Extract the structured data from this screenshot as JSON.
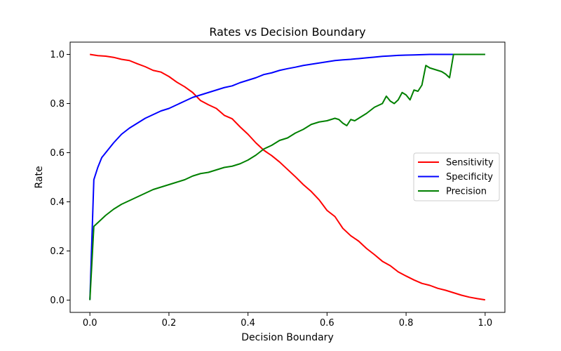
{
  "chart_data": {
    "type": "line",
    "title": "Rates vs Decision Boundary",
    "xlabel": "Decision Boundary",
    "ylabel": "Rate",
    "xlim": [
      -0.05,
      1.05
    ],
    "ylim": [
      -0.05,
      1.05
    ],
    "xticks": [
      0.0,
      0.2,
      0.4,
      0.6,
      0.8,
      1.0
    ],
    "xtick_labels": [
      "0.0",
      "0.2",
      "0.4",
      "0.6",
      "0.8",
      "1.0"
    ],
    "yticks": [
      0.0,
      0.2,
      0.4,
      0.6,
      0.8,
      1.0
    ],
    "ytick_labels": [
      "0.0",
      "0.2",
      "0.4",
      "0.6",
      "0.8",
      "1.0"
    ],
    "grid": false,
    "legend_position": "center-right",
    "series": [
      {
        "name": "Sensitivity",
        "color": "#ff0000",
        "x": [
          0.0,
          0.02,
          0.04,
          0.06,
          0.08,
          0.1,
          0.12,
          0.14,
          0.16,
          0.18,
          0.2,
          0.22,
          0.24,
          0.26,
          0.28,
          0.3,
          0.32,
          0.34,
          0.36,
          0.38,
          0.4,
          0.42,
          0.44,
          0.46,
          0.48,
          0.5,
          0.52,
          0.54,
          0.56,
          0.58,
          0.6,
          0.62,
          0.64,
          0.66,
          0.68,
          0.7,
          0.72,
          0.74,
          0.76,
          0.78,
          0.8,
          0.82,
          0.84,
          0.86,
          0.88,
          0.9,
          0.92,
          0.94,
          0.96,
          0.98,
          1.0
        ],
        "y": [
          1.0,
          0.995,
          0.993,
          0.988,
          0.98,
          0.975,
          0.962,
          0.95,
          0.935,
          0.928,
          0.91,
          0.887,
          0.868,
          0.845,
          0.812,
          0.795,
          0.78,
          0.752,
          0.738,
          0.705,
          0.675,
          0.64,
          0.61,
          0.588,
          0.562,
          0.532,
          0.502,
          0.47,
          0.442,
          0.408,
          0.365,
          0.34,
          0.292,
          0.262,
          0.24,
          0.21,
          0.185,
          0.158,
          0.14,
          0.115,
          0.098,
          0.082,
          0.068,
          0.06,
          0.048,
          0.04,
          0.03,
          0.02,
          0.012,
          0.006,
          0.001
        ]
      },
      {
        "name": "Specificity",
        "color": "#0000ff",
        "x": [
          0.0,
          0.01,
          0.02,
          0.03,
          0.04,
          0.06,
          0.08,
          0.1,
          0.12,
          0.14,
          0.16,
          0.18,
          0.2,
          0.22,
          0.24,
          0.26,
          0.28,
          0.3,
          0.32,
          0.34,
          0.36,
          0.38,
          0.4,
          0.42,
          0.44,
          0.46,
          0.48,
          0.5,
          0.52,
          0.54,
          0.56,
          0.58,
          0.6,
          0.62,
          0.64,
          0.66,
          0.68,
          0.7,
          0.72,
          0.74,
          0.76,
          0.78,
          0.8,
          0.82,
          0.84,
          0.86,
          0.88,
          0.9,
          0.92,
          0.94,
          0.96,
          0.98,
          1.0
        ],
        "y": [
          0.0,
          0.49,
          0.54,
          0.58,
          0.6,
          0.64,
          0.675,
          0.7,
          0.72,
          0.74,
          0.755,
          0.77,
          0.78,
          0.795,
          0.81,
          0.825,
          0.835,
          0.845,
          0.855,
          0.865,
          0.872,
          0.885,
          0.895,
          0.905,
          0.918,
          0.925,
          0.935,
          0.942,
          0.948,
          0.955,
          0.96,
          0.965,
          0.97,
          0.975,
          0.978,
          0.98,
          0.983,
          0.986,
          0.989,
          0.992,
          0.994,
          0.996,
          0.997,
          0.998,
          0.999,
          1.0,
          1.0,
          1.0,
          1.0,
          1.0,
          1.0,
          1.0,
          1.0
        ]
      },
      {
        "name": "Precision",
        "color": "#008000",
        "x": [
          0.0,
          0.01,
          0.02,
          0.03,
          0.04,
          0.06,
          0.08,
          0.1,
          0.12,
          0.14,
          0.16,
          0.18,
          0.2,
          0.22,
          0.24,
          0.26,
          0.28,
          0.3,
          0.32,
          0.34,
          0.36,
          0.38,
          0.4,
          0.42,
          0.44,
          0.46,
          0.48,
          0.5,
          0.52,
          0.54,
          0.56,
          0.58,
          0.6,
          0.61,
          0.62,
          0.63,
          0.64,
          0.65,
          0.66,
          0.67,
          0.68,
          0.7,
          0.72,
          0.74,
          0.75,
          0.76,
          0.77,
          0.78,
          0.79,
          0.8,
          0.81,
          0.82,
          0.83,
          0.84,
          0.85,
          0.86,
          0.87,
          0.88,
          0.89,
          0.9,
          0.91,
          0.92,
          0.93,
          0.94,
          0.96,
          0.98,
          1.0
        ],
        "y": [
          0.0,
          0.3,
          0.315,
          0.33,
          0.345,
          0.37,
          0.39,
          0.405,
          0.42,
          0.435,
          0.45,
          0.46,
          0.47,
          0.48,
          0.49,
          0.505,
          0.515,
          0.52,
          0.53,
          0.54,
          0.545,
          0.555,
          0.57,
          0.59,
          0.615,
          0.63,
          0.65,
          0.66,
          0.68,
          0.695,
          0.715,
          0.725,
          0.73,
          0.735,
          0.74,
          0.735,
          0.72,
          0.71,
          0.735,
          0.73,
          0.74,
          0.76,
          0.785,
          0.8,
          0.83,
          0.81,
          0.8,
          0.815,
          0.845,
          0.835,
          0.815,
          0.855,
          0.85,
          0.875,
          0.955,
          0.945,
          0.94,
          0.935,
          0.93,
          0.92,
          0.905,
          1.0,
          1.0,
          1.0,
          1.0,
          1.0,
          1.0
        ]
      }
    ]
  }
}
